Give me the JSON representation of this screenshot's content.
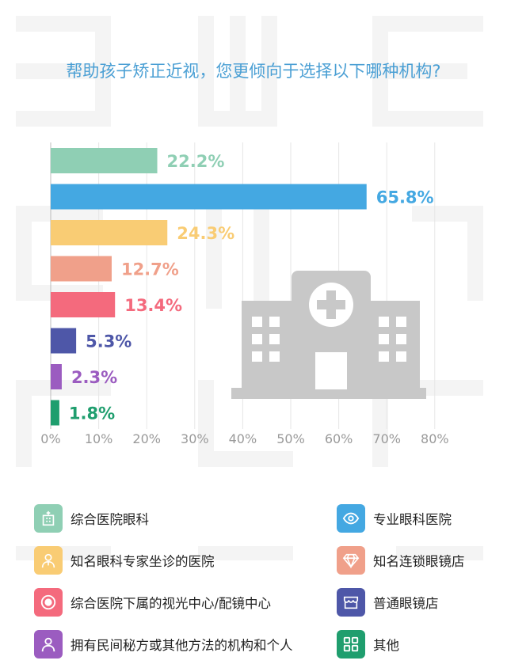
{
  "title": "帮助孩子矫正近视，您更倾向于选择以下哪种机构?",
  "chart_data": {
    "type": "bar",
    "orientation": "horizontal",
    "categories": [
      "综合医院眼科",
      "专业眼科医院",
      "知名眼科专家坐诊的医院",
      "知名连锁眼镜店",
      "综合医院下属的视光中心/配镜中心",
      "普通眼镜店",
      "拥有民间秘方或其他方法的机构和个人",
      "其他"
    ],
    "values": [
      22.2,
      65.8,
      24.3,
      12.7,
      13.4,
      5.3,
      2.3,
      1.8
    ],
    "value_labels": [
      "22.2%",
      "65.8%",
      "24.3%",
      "12.7%",
      "13.4%",
      "5.3%",
      "2.3%",
      "1.8%"
    ],
    "colors": [
      "#8fcfb4",
      "#44a8e2",
      "#f9cc74",
      "#f0a08a",
      "#f46a7d",
      "#4e57a8",
      "#9b5cc0",
      "#1f9e6e"
    ],
    "x_ticks": [
      "0%",
      "10%",
      "20%",
      "30%",
      "40%",
      "50%",
      "60%",
      "70%",
      "80%"
    ],
    "xlim": [
      0,
      80
    ],
    "grid": true,
    "legend_position": "bottom"
  },
  "legend": [
    {
      "label": "综合医院眼科",
      "color": "#8fcfb4",
      "icon": "hospital-icon"
    },
    {
      "label": "专业眼科医院",
      "color": "#44a8e2",
      "icon": "eye-icon"
    },
    {
      "label": "知名眼科专家坐诊的医院",
      "color": "#f9cc74",
      "icon": "doctor-icon"
    },
    {
      "label": "知名连锁眼镜店",
      "color": "#f0a08a",
      "icon": "diamond-icon"
    },
    {
      "label": "综合医院下属的视光中心/配镜中心",
      "color": "#f46a7d",
      "icon": "target-icon"
    },
    {
      "label": "普通眼镜店",
      "color": "#4e57a8",
      "icon": "store-icon"
    },
    {
      "label": "拥有民间秘方或其他方法的机构和个人",
      "color": "#9b5cc0",
      "icon": "person-icon"
    },
    {
      "label": "其他",
      "color": "#1f9e6e",
      "icon": "grid-icon"
    }
  ],
  "illustration": {
    "icon": "hospital-building-icon",
    "color": "#c8c8c8"
  }
}
